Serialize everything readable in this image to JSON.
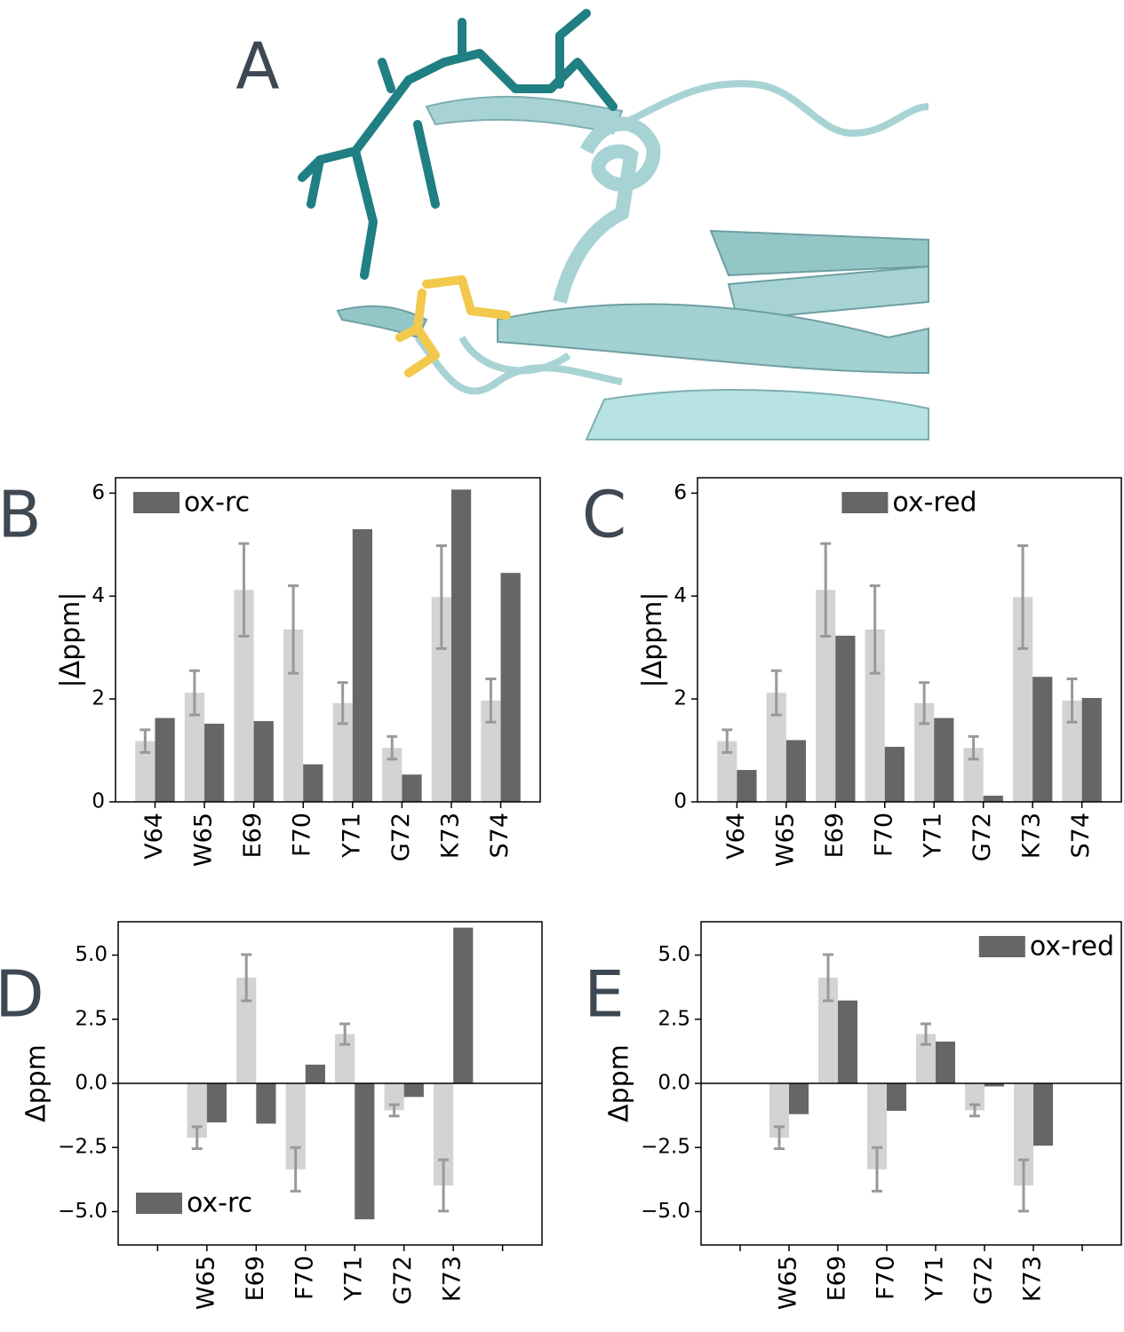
{
  "structure_panel": {
    "panel": "A"
  },
  "chart_data": [
    {
      "type": "bar",
      "panel": "B",
      "ylabel": "|Δppm|",
      "categories": [
        "V64",
        "W65",
        "E69",
        "F70",
        "Y71",
        "G72",
        "K73",
        "S74"
      ],
      "series": [
        {
          "color": "#d3d3d3",
          "error_color": "#999999",
          "values": [
            1.18,
            2.12,
            4.12,
            3.35,
            1.92,
            1.05,
            3.98,
            1.97
          ],
          "errors": [
            0.22,
            0.43,
            0.9,
            0.85,
            0.4,
            0.22,
            1.0,
            0.42
          ]
        },
        {
          "name": "ox-rc",
          "color": "#666666",
          "values": [
            1.63,
            1.52,
            1.57,
            0.73,
            5.3,
            0.53,
            6.07,
            4.45
          ]
        }
      ],
      "ylim": [
        0,
        6.3
      ],
      "yticks": [
        0,
        2,
        4,
        6
      ],
      "legend": "upper left"
    },
    {
      "type": "bar",
      "panel": "C",
      "ylabel": "|Δppm|",
      "categories": [
        "V64",
        "W65",
        "E69",
        "F70",
        "Y71",
        "G72",
        "K73",
        "S74"
      ],
      "series": [
        {
          "color": "#d3d3d3",
          "error_color": "#999999",
          "values": [
            1.18,
            2.12,
            4.12,
            3.35,
            1.92,
            1.05,
            3.98,
            1.97
          ],
          "errors": [
            0.22,
            0.43,
            0.9,
            0.85,
            0.4,
            0.22,
            1.0,
            0.42
          ]
        },
        {
          "name": "ox-red",
          "color": "#666666",
          "values": [
            0.62,
            1.2,
            3.23,
            1.07,
            1.63,
            0.12,
            2.43,
            2.02
          ]
        }
      ],
      "ylim": [
        0,
        6.3
      ],
      "yticks": [
        0,
        2,
        4,
        6
      ],
      "legend": "upper center"
    },
    {
      "type": "bar",
      "panel": "D",
      "ylabel": "Δppm",
      "categories": [
        null,
        "W65",
        "E69",
        "F70",
        "Y71",
        "G72",
        "K73",
        null
      ],
      "series": [
        {
          "color": "#d3d3d3",
          "error_color": "#999999",
          "values": [
            null,
            -2.12,
            4.12,
            -3.35,
            1.92,
            -1.05,
            -3.98,
            null
          ],
          "errors": [
            null,
            0.43,
            0.9,
            0.85,
            0.4,
            0.22,
            1.0,
            null
          ]
        },
        {
          "name": "ox-rc",
          "color": "#666666",
          "values": [
            null,
            -1.52,
            -1.57,
            0.73,
            -5.3,
            -0.53,
            6.07,
            null
          ]
        }
      ],
      "ylim": [
        -6.3,
        6.3
      ],
      "yticks": [
        {
          "value": -5,
          "label": "−5.0"
        },
        {
          "value": -2.5,
          "label": "−2.5"
        },
        {
          "value": 0,
          "label": "0.0"
        },
        {
          "value": 2.5,
          "label": "2.5"
        },
        {
          "value": 5,
          "label": "5.0"
        }
      ],
      "hline": 0,
      "legend": "lower left"
    },
    {
      "type": "bar",
      "panel": "E",
      "ylabel": "Δppm",
      "categories": [
        null,
        "W65",
        "E69",
        "F70",
        "Y71",
        "G72",
        "K73",
        null
      ],
      "series": [
        {
          "color": "#d3d3d3",
          "error_color": "#999999",
          "values": [
            null,
            -2.12,
            4.12,
            -3.35,
            1.92,
            -1.05,
            -3.98,
            null
          ],
          "errors": [
            null,
            0.43,
            0.9,
            0.85,
            0.4,
            0.22,
            1.0,
            null
          ]
        },
        {
          "name": "ox-red",
          "color": "#666666",
          "values": [
            null,
            -1.2,
            3.23,
            -1.07,
            1.63,
            -0.12,
            -2.43,
            null
          ]
        }
      ],
      "ylim": [
        -6.3,
        6.3
      ],
      "yticks": [
        {
          "value": -5,
          "label": "−5.0"
        },
        {
          "value": -2.5,
          "label": "−2.5"
        },
        {
          "value": 0,
          "label": "0.0"
        },
        {
          "value": 2.5,
          "label": "2.5"
        },
        {
          "value": 5,
          "label": "5.0"
        }
      ],
      "hline": 0,
      "legend": "upper right"
    }
  ]
}
